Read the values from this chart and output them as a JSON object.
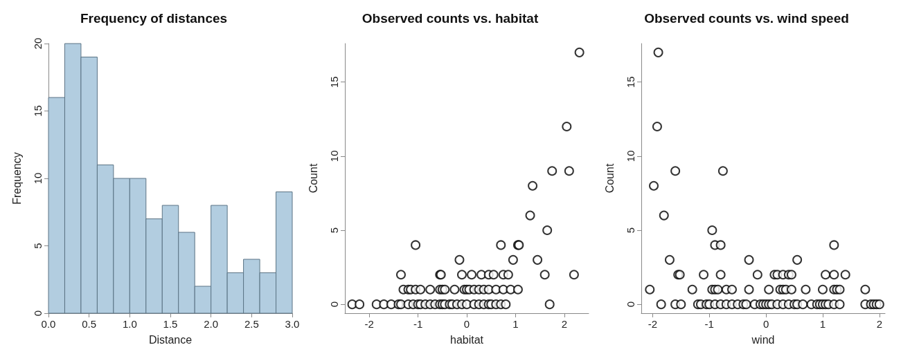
{
  "chart_data": [
    {
      "type": "histogram",
      "title": "Frequency of distances",
      "xlabel": "Distance",
      "ylabel": "Frequency",
      "bins": [
        0,
        0.2,
        0.4,
        0.6,
        0.8,
        1.0,
        1.2,
        1.4,
        1.6,
        1.8,
        2.0,
        2.2,
        2.4,
        2.6,
        2.8,
        3.0
      ],
      "values": [
        16,
        20,
        19,
        11,
        10,
        10,
        7,
        8,
        6,
        2,
        8,
        3,
        4,
        3,
        9
      ],
      "color": "#b2cde0",
      "xlim": [
        0,
        3
      ],
      "ylim": [
        0,
        20
      ],
      "xticks": [
        {
          "value": 0,
          "label": "0.0"
        },
        0.5,
        {
          "value": 1,
          "label": "1.0"
        },
        1.5,
        {
          "value": 2,
          "label": "2.0"
        },
        2.5,
        {
          "value": 3,
          "label": "3.0"
        }
      ],
      "yticks": [
        0,
        5,
        10,
        15,
        20
      ],
      "grid": false
    },
    {
      "type": "scatter",
      "title": "Observed counts vs. habitat",
      "xlabel": "habitat",
      "ylabel": "Count",
      "marker": "circle",
      "color": "#000000",
      "grid": false,
      "xlim": [
        -2.5,
        2.5
      ],
      "ylim": [
        -0.6,
        17.6
      ],
      "xticks": [
        -2,
        -1,
        0,
        1,
        2
      ],
      "yticks": [
        0,
        5,
        10,
        15
      ],
      "x": [
        2.31,
        2.05,
        1.75,
        2.1,
        1.35,
        1.3,
        1.65,
        0.7,
        1.05,
        1.07,
        -1.05,
        1.45,
        0.95,
        -0.15,
        2.2,
        1.6,
        -1.35,
        -0.55,
        -0.53,
        -0.1,
        0.1,
        0.3,
        0.45,
        0.55,
        0.75,
        0.85,
        -1.3,
        -1.2,
        -1.15,
        -1.05,
        -0.95,
        -0.75,
        -0.55,
        -0.5,
        -0.45,
        -0.25,
        -0.05,
        0.0,
        0.05,
        0.15,
        0.25,
        0.35,
        0.45,
        0.6,
        0.75,
        0.9,
        1.05,
        -2.35,
        -2.2,
        -1.85,
        -1.7,
        -1.55,
        -1.4,
        -1.35,
        -1.2,
        -1.1,
        -1.0,
        -0.95,
        -0.85,
        -0.75,
        -0.65,
        -0.55,
        -0.5,
        -0.45,
        -0.35,
        -0.3,
        -0.2,
        -0.1,
        0.0,
        0.15,
        0.25,
        0.35,
        0.45,
        0.5,
        0.6,
        0.7,
        0.8,
        1.7
      ],
      "values": [
        17,
        12,
        9,
        9,
        8,
        6,
        5,
        4,
        4,
        4,
        4,
        3,
        3,
        3,
        2,
        2,
        2,
        2,
        2,
        2,
        2,
        2,
        2,
        2,
        2,
        2,
        1,
        1,
        1,
        1,
        1,
        1,
        1,
        1,
        1,
        1,
        1,
        1,
        1,
        1,
        1,
        1,
        1,
        1,
        1,
        1,
        1,
        0,
        0,
        0,
        0,
        0,
        0,
        0,
        0,
        0,
        0,
        0,
        0,
        0,
        0,
        0,
        0,
        0,
        0,
        0,
        0,
        0,
        0,
        0,
        0,
        0,
        0,
        0,
        0,
        0,
        0,
        0
      ]
    },
    {
      "type": "scatter",
      "title": "Observed counts vs. wind speed",
      "xlabel": "wind",
      "ylabel": "Count",
      "marker": "circle",
      "color": "#000000",
      "grid": false,
      "xlim": [
        -2.2,
        2.1
      ],
      "ylim": [
        -0.6,
        17.6
      ],
      "xticks": [
        -2,
        -1,
        0,
        1,
        2
      ],
      "yticks": [
        0,
        5,
        10,
        15
      ],
      "x": [
        -1.9,
        -1.92,
        -1.98,
        -1.6,
        -0.76,
        -1.8,
        -1.7,
        -0.95,
        -0.9,
        -0.8,
        -0.3,
        0.55,
        1.2,
        -1.55,
        -1.52,
        -1.1,
        -0.8,
        -0.15,
        0.15,
        0.2,
        0.3,
        0.4,
        0.45,
        1.05,
        1.2,
        1.4,
        -2.05,
        -1.3,
        -0.95,
        -0.9,
        -0.85,
        -0.7,
        -0.6,
        -0.3,
        0.05,
        0.25,
        0.3,
        0.35,
        0.45,
        0.7,
        1.0,
        1.2,
        1.25,
        1.3,
        1.75,
        -1.85,
        -1.6,
        -1.5,
        -1.2,
        -1.15,
        -1.05,
        -1.0,
        -0.9,
        -0.8,
        -0.7,
        -0.6,
        -0.5,
        -0.4,
        -0.35,
        -0.2,
        -0.1,
        -0.05,
        0.0,
        0.05,
        0.1,
        0.2,
        0.3,
        0.4,
        0.5,
        0.55,
        0.65,
        0.8,
        0.9,
        0.95,
        1.0,
        1.05,
        1.1,
        1.2,
        1.3,
        1.75,
        1.85,
        1.9,
        1.95,
        2.0
      ],
      "values": [
        17,
        12,
        8,
        9,
        9,
        6,
        3,
        5,
        4,
        4,
        3,
        3,
        4,
        2,
        2,
        2,
        2,
        2,
        2,
        2,
        2,
        2,
        2,
        2,
        2,
        2,
        1,
        1,
        1,
        1,
        1,
        1,
        1,
        1,
        1,
        1,
        1,
        1,
        1,
        1,
        1,
        1,
        1,
        1,
        1,
        0,
        0,
        0,
        0,
        0,
        0,
        0,
        0,
        0,
        0,
        0,
        0,
        0,
        0,
        0,
        0,
        0,
        0,
        0,
        0,
        0,
        0,
        0,
        0,
        0,
        0,
        0,
        0,
        0,
        0,
        0,
        0,
        0,
        0,
        0,
        0,
        0,
        0,
        0
      ]
    }
  ]
}
